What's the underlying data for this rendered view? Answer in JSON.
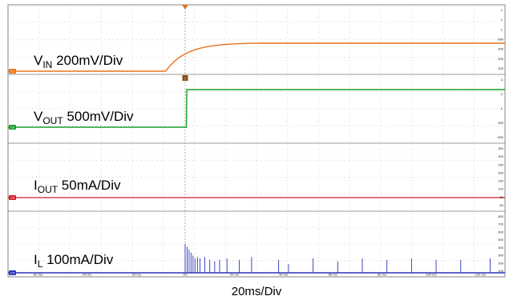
{
  "chart_data": {
    "type": "line",
    "timebase": "20ms/Div",
    "x_ticks": [
      "-60 ms",
      "-40 ms",
      "-20 ms",
      "0 s",
      "20 ms",
      "40 ms",
      "60 ms",
      "80 ms",
      "100 ms",
      "120 ms"
    ],
    "x_unit": "ms",
    "xlim": [
      -72,
      130
    ],
    "channels": [
      {
        "id": "C1",
        "label": {
          "main": "V",
          "sub": "IN",
          "rest": " 200mV/Div"
        },
        "color": "#E8731A",
        "ticks": [
          "1.",
          "1.",
          "1.",
          "800",
          "600",
          "400",
          "200"
        ],
        "waveform": "step-ramp",
        "start_ms": -8,
        "end_ms": 30
      },
      {
        "id": "C2",
        "label": {
          "main": "V",
          "sub": "OUT",
          "rest": " 500mV/Div"
        },
        "color": "#1A9E2E",
        "ticks": [
          "3.",
          "2.",
          "1.",
          "500",
          "-500"
        ],
        "waveform": "step",
        "start_ms": 0.5
      },
      {
        "id": "C3",
        "label": {
          "main": "I",
          "sub": "OUT",
          "rest": " 50mA/Div"
        },
        "color": "#D61F2C",
        "ticks": [
          "350",
          "300",
          "250",
          "200",
          "150",
          "100",
          "50",
          "-50"
        ],
        "waveform": "flat"
      },
      {
        "id": "C4",
        "label": {
          "main": "I",
          "sub": "L",
          "rest": " 100mA/Div"
        },
        "color": "#2A35B8",
        "ticks": [
          "800",
          "700",
          "600",
          "500",
          "400",
          "300",
          "200",
          "100"
        ],
        "waveform": "pulses",
        "pulses_ms": [
          0,
          0.8,
          1.6,
          2.4,
          3.2,
          4,
          5,
          6,
          8,
          10,
          12,
          14,
          17,
          22,
          27,
          38,
          42,
          52,
          62,
          72,
          82,
          92,
          102,
          112,
          124
        ],
        "pulse_amplitude": [
          1,
          0.9,
          0.8,
          0.7,
          0.6,
          0.5,
          0.55,
          0.5,
          0.55,
          0.45,
          0.4,
          0.45,
          0.5,
          0.45,
          0.55,
          0.45,
          0.3,
          0.5,
          0.4,
          0.5,
          0.45,
          0.5,
          0.45,
          0.45,
          0.5
        ]
      }
    ],
    "trigger_marker": "T"
  }
}
